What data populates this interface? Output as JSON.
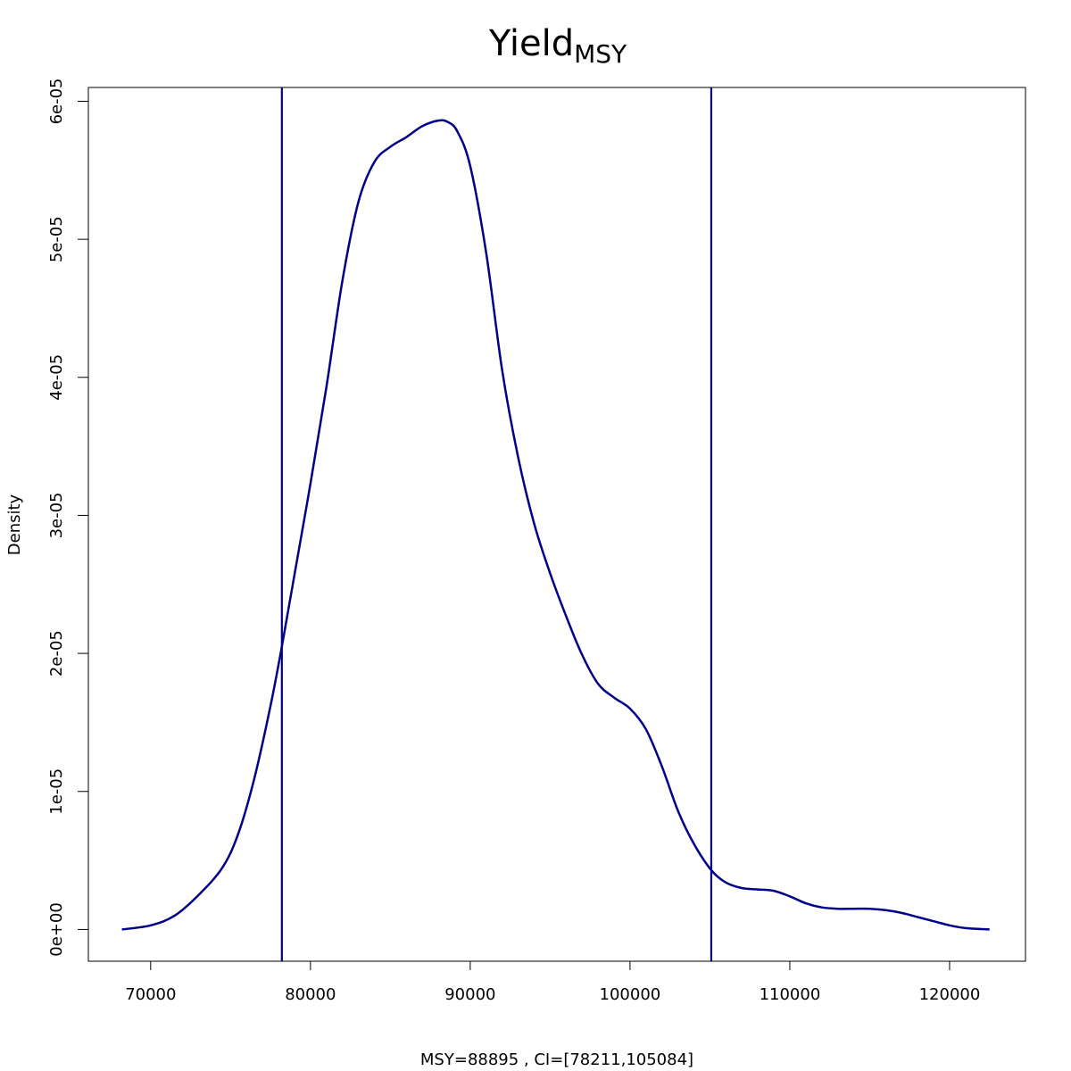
{
  "chart_data": {
    "type": "line",
    "title_main": "Yield",
    "title_sub": "MSY",
    "xlabel": "MSY=88895 , CI=[78211,105084]",
    "ylabel": "Density",
    "xlim": [
      66100,
      124750
    ],
    "ylim": [
      -2.3e-06,
      6.1e-05
    ],
    "x_ticks": [
      70000,
      80000,
      90000,
      100000,
      110000,
      120000
    ],
    "x_tick_labels": [
      "70000",
      "80000",
      "90000",
      "100000",
      "110000",
      "120000"
    ],
    "y_ticks": [
      0,
      1e-05,
      2e-05,
      3e-05,
      4e-05,
      5e-05,
      6e-05
    ],
    "y_tick_labels": [
      "0e+00",
      "1e-05",
      "2e-05",
      "3e-05",
      "4e-05",
      "5e-05",
      "6e-05"
    ],
    "line_color": "#00008B",
    "vlines": [
      78211,
      105084
    ],
    "series": [
      {
        "x": [
          68200,
          70000,
          71500,
          73000,
          74500,
          75500,
          76500,
          77500,
          78211,
          79000,
          80000,
          81000,
          82000,
          83000,
          84000,
          85000,
          86000,
          87000,
          88000,
          88600,
          89200,
          90000,
          91000,
          92000,
          93000,
          94000,
          95000,
          96000,
          97000,
          98000,
          99000,
          100000,
          101000,
          102000,
          103000,
          104000,
          105084,
          106000,
          107000,
          108000,
          109000,
          110000,
          111000,
          112000,
          113000,
          114000,
          115000,
          116000,
          117000,
          118000,
          119000,
          120000,
          121000,
          122500
        ],
        "y": [
          0.0,
          3e-07,
          1e-06,
          2.5e-06,
          4.5e-06,
          7e-06,
          1.1e-05,
          1.62e-05,
          2.05e-05,
          2.57e-05,
          3.23e-05,
          3.93e-05,
          4.7e-05,
          5.27e-05,
          5.56e-05,
          5.67e-05,
          5.74e-05,
          5.82e-05,
          5.86e-05,
          5.85e-05,
          5.78e-05,
          5.53e-05,
          4.9e-05,
          4.05e-05,
          3.42e-05,
          2.94e-05,
          2.58e-05,
          2.27e-05,
          1.99e-05,
          1.78e-05,
          1.68e-05,
          1.6e-05,
          1.45e-05,
          1.18e-05,
          8.6e-06,
          6.2e-06,
          4.3e-06,
          3.4e-06,
          3e-06,
          2.9e-06,
          2.8e-06,
          2.4e-06,
          1.9e-06,
          1.6e-06,
          1.5e-06,
          1.5e-06,
          1.5e-06,
          1.4e-06,
          1.2e-06,
          9e-07,
          6e-07,
          3e-07,
          1e-07,
          0.0
        ]
      }
    ]
  }
}
